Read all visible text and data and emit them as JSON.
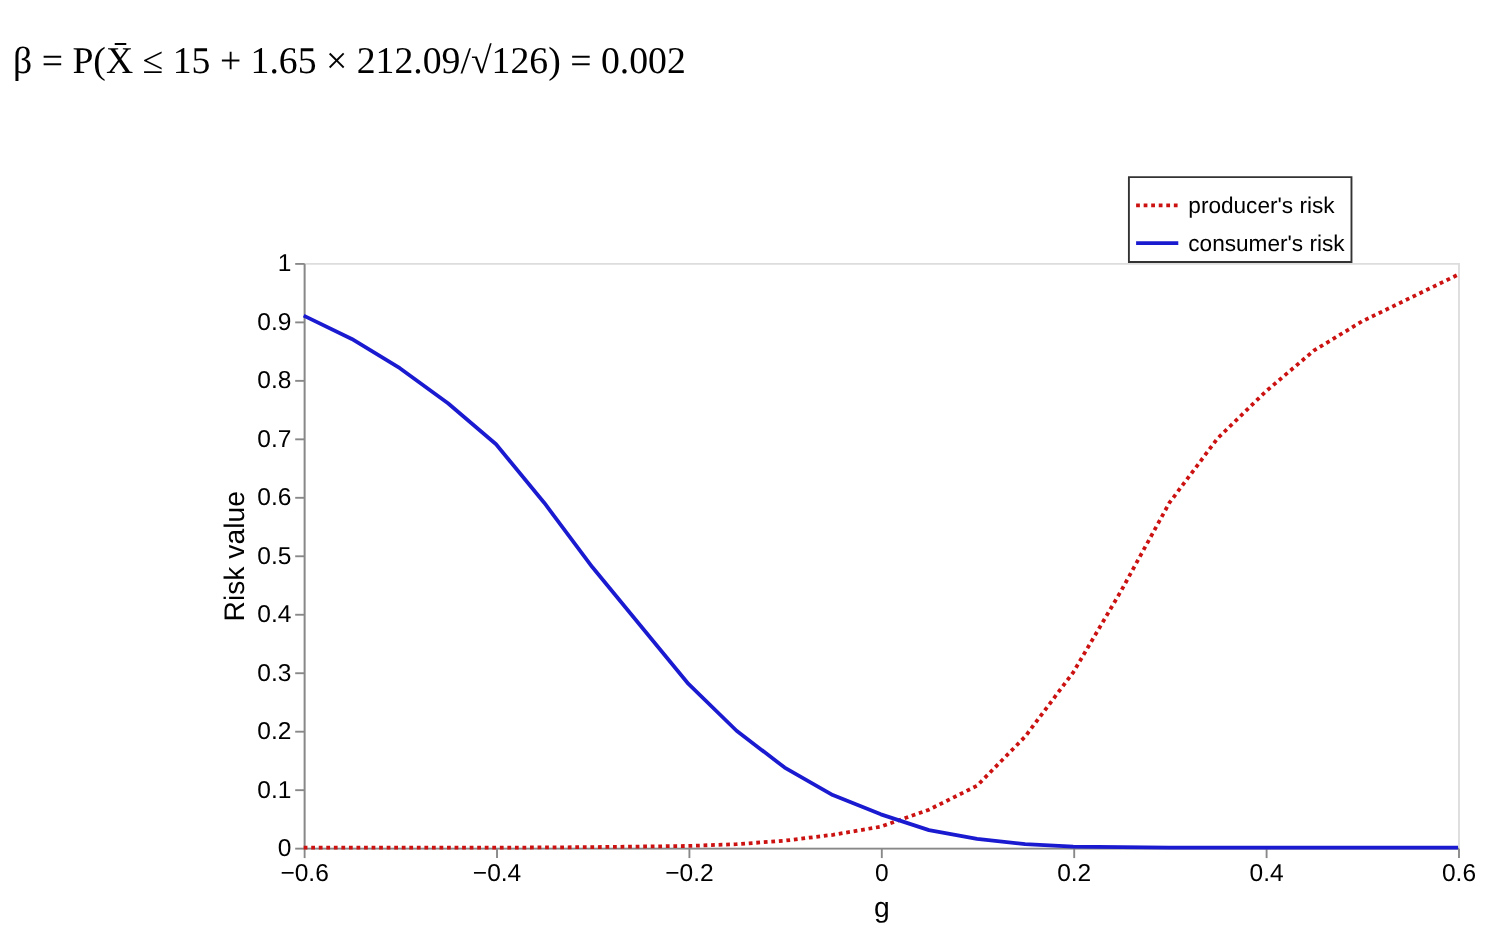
{
  "chart_data": {
    "type": "line",
    "xlabel": "g",
    "ylabel": "Risk value",
    "annotations": [
      "β = P(X̄ ≤ 15 + 1.65 × 212.09/√126) = 0.002"
    ],
    "xlim": [
      -0.6,
      0.6
    ],
    "xticks": [
      -0.6,
      -0.4,
      -0.2,
      0,
      0.2,
      0.4,
      0.6
    ],
    "ylim": [
      0,
      1
    ],
    "yticks": [
      0,
      0.1,
      0.2,
      0.3,
      0.4,
      0.5,
      0.6,
      0.7,
      0.8,
      0.9,
      1
    ],
    "grid": false,
    "legend": "top right",
    "marker": "none",
    "series": [
      {
        "name": "producer's risk",
        "color": "#cc1111",
        "line_style": "dotted",
        "x": [
          -0.6,
          -0.5,
          -0.4,
          -0.3,
          -0.2,
          -0.15,
          -0.1,
          -0.05,
          0,
          0.05,
          0.1,
          0.15,
          0.2,
          0.25,
          0.3,
          0.35,
          0.4,
          0.45,
          0.5,
          0.55,
          0.6
        ],
        "values": [
          0,
          0,
          0,
          0.001,
          0.003,
          0.006,
          0.012,
          0.022,
          0.036,
          0.065,
          0.106,
          0.19,
          0.3,
          0.44,
          0.59,
          0.7,
          0.78,
          0.85,
          0.9,
          0.94,
          0.98
        ]
      },
      {
        "name": "consumer's risk",
        "color": "#1a1ad0",
        "line_style": "solid",
        "x": [
          -0.6,
          -0.55,
          -0.5,
          -0.45,
          -0.4,
          -0.35,
          -0.3,
          -0.25,
          -0.2,
          -0.15,
          -0.1,
          -0.05,
          0,
          0.05,
          0.1,
          0.15,
          0.2,
          0.3,
          0.4,
          0.5,
          0.6
        ],
        "values": [
          0.91,
          0.87,
          0.82,
          0.76,
          0.69,
          0.59,
          0.48,
          0.38,
          0.28,
          0.2,
          0.137,
          0.09,
          0.057,
          0.03,
          0.015,
          0.006,
          0.002,
          0,
          0,
          0,
          0
        ]
      }
    ]
  }
}
